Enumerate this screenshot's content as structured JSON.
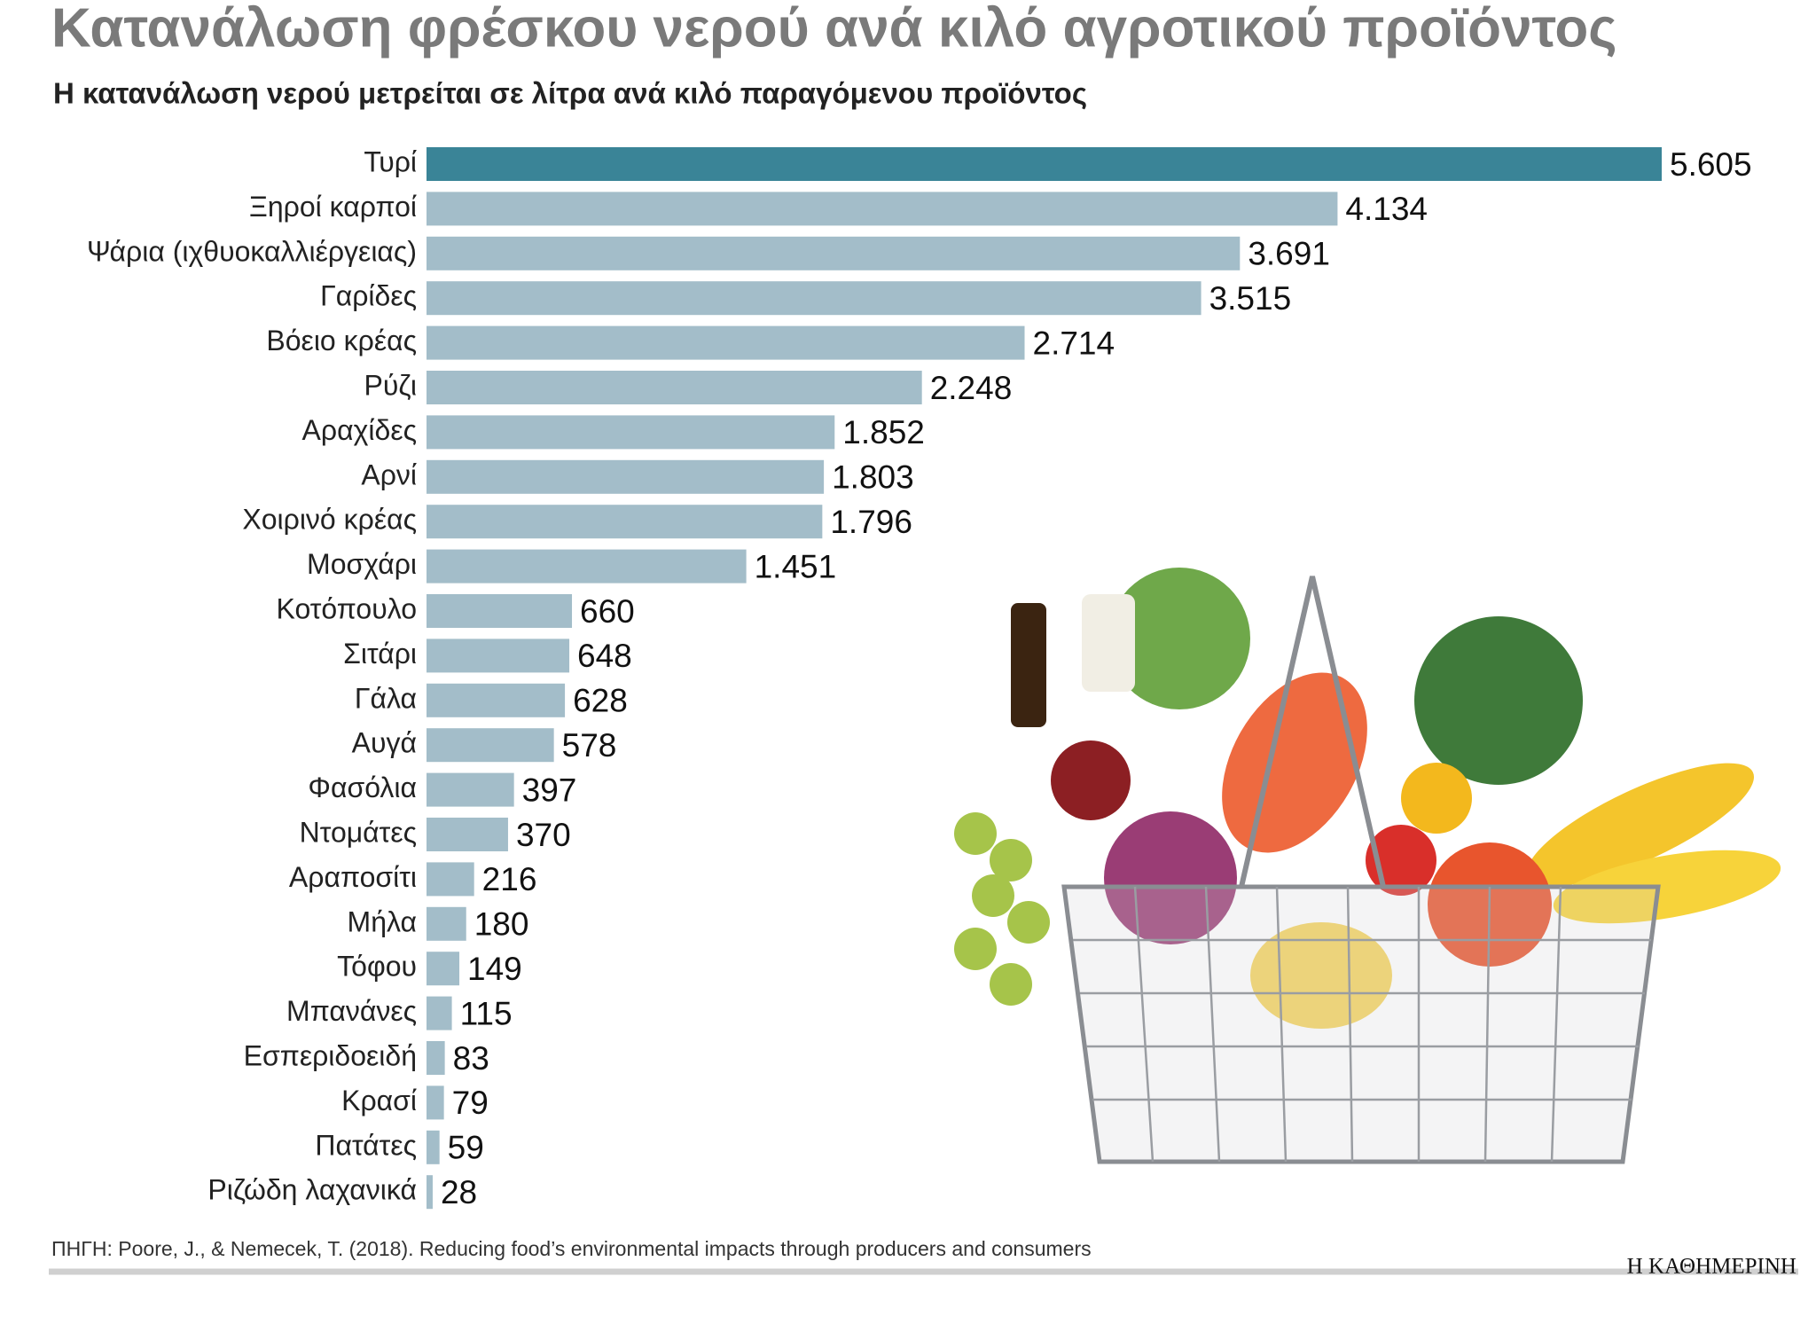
{
  "chart_data": {
    "type": "bar",
    "orientation": "horizontal",
    "title": "Κατανάλωση φρέσκου νερού ανά κιλό αγροτικού προϊόντος",
    "subtitle": "Η κατανάλωση νερού μετρείται σε λίτρα ανά κιλό παραγόμενου προϊόντος",
    "categories": [
      "Τυρί",
      "Ξηροί καρποί",
      "Ψάρια (ιχθυοκαλλιέργειας)",
      "Γαρίδες",
      "Βόειο κρέας",
      "Ρύζι",
      "Αραχίδες",
      "Αρνί",
      "Χοιρινό κρέας",
      "Μοσχάρι",
      "Κοτόπουλο",
      "Σιτάρι",
      "Γάλα",
      "Αυγά",
      "Φασόλια",
      "Ντομάτες",
      "Αραποσίτι",
      "Μήλα",
      "Τόφου",
      "Μπανάνες",
      "Εσπεριδοειδή",
      "Κρασί",
      "Πατάτες",
      "Ριζώδη λαχανικά"
    ],
    "values": [
      5605,
      4134,
      3691,
      3515,
      2714,
      2248,
      1852,
      1803,
      1796,
      1451,
      660,
      648,
      628,
      578,
      397,
      370,
      216,
      180,
      149,
      115,
      83,
      79,
      59,
      28
    ],
    "value_labels": [
      "5.605",
      "4.134",
      "3.691",
      "3.515",
      "2.714",
      "2.248",
      "1.852",
      "1.803",
      "1.796",
      "1.451",
      "660",
      "648",
      "628",
      "578",
      "397",
      "370",
      "216",
      "180",
      "149",
      "115",
      "83",
      "79",
      "59",
      "28"
    ],
    "colors": [
      "#3a8497",
      "#a3bdc9",
      "#a3bdc9",
      "#a3bdc9",
      "#a3bdc9",
      "#a3bdc9",
      "#a3bdc9",
      "#a3bdc9",
      "#a3bdc9",
      "#a3bdc9",
      "#a3bdc9",
      "#a3bdc9",
      "#a3bdc9",
      "#a3bdc9",
      "#a3bdc9",
      "#a3bdc9",
      "#a3bdc9",
      "#a3bdc9",
      "#a3bdc9",
      "#a3bdc9",
      "#a3bdc9",
      "#a3bdc9",
      "#a3bdc9",
      "#a3bdc9"
    ],
    "source": "ΠΗΓΗ: Poore, J., & Nemecek, T. (2018). Reducing food’s environmental impacts through producers and consumers",
    "brand": "Η ΚΑΘΗΜΕΡΙΝΗ"
  }
}
